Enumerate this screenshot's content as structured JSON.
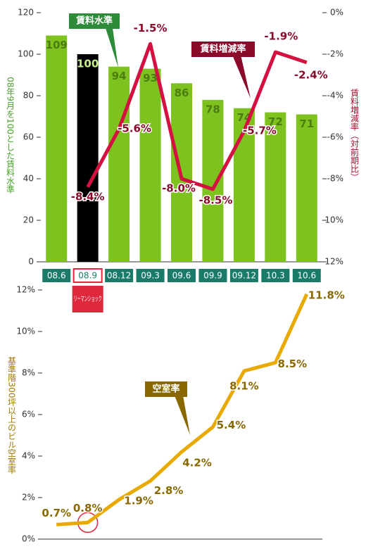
{
  "chart_data": [
    {
      "type": "bar",
      "categories": [
        "08.6",
        "08.9",
        "08.12",
        "09.3",
        "09.6",
        "09.9",
        "09.12",
        "10.3",
        "10.6"
      ],
      "series": [
        {
          "name": "賃料水準",
          "type": "bar",
          "colors": [
            "#7dc21e",
            "#000000",
            "#7dc21e",
            "#7dc21e",
            "#7dc21e",
            "#7dc21e",
            "#7dc21e",
            "#7dc21e",
            "#7dc21e"
          ],
          "values": [
            109,
            100,
            94,
            93,
            86,
            78,
            74,
            72,
            71
          ]
        },
        {
          "name": "賃料増減率",
          "type": "line",
          "axis": "y2",
          "color": "#d3103f",
          "values": [
            null,
            -8.4,
            -5.6,
            -1.5,
            -8,
            -8.5,
            -5.7,
            -1.9,
            -2.4
          ],
          "value_labels": [
            null,
            "-8.4%",
            "-5.6%",
            "-1.5%",
            "-8.0%",
            "-8.5%",
            "-5.7%",
            "-1.9%",
            "-2.4%"
          ]
        }
      ],
      "ylim": [
        0,
        120
      ],
      "yticks": [
        0,
        20,
        40,
        60,
        80,
        100,
        120
      ],
      "y2lim": [
        -12,
        0
      ],
      "y2ticks": [
        {
          "value": 0,
          "label": "0%"
        },
        {
          "value": -2,
          "label": "-2%"
        },
        {
          "value": -4,
          "label": "-4%"
        },
        {
          "value": -6,
          "label": "-6%"
        },
        {
          "value": -8,
          "label": "-8%"
        },
        {
          "value": -10,
          "label": "-10%"
        },
        {
          "value": -12,
          "label": "-12%"
        }
      ],
      "ylabel": "08年9月を100とした賃料水準",
      "y2label": "賃料増減率（対前期比）",
      "annotation": "リーマンショック"
    },
    {
      "type": "line",
      "series": [
        {
          "name": "空室率",
          "color": "#e8a900",
          "values": [
            0.7,
            0.8,
            1.9,
            2.8,
            4.2,
            5.4,
            8.1,
            8.5,
            11.8
          ],
          "value_labels": [
            "0.7%",
            "0.8%",
            "1.9%",
            "2.8%",
            "4.2%",
            "5.4%",
            "8.1%",
            "8.5%",
            "11.8%"
          ]
        }
      ],
      "ylim": [
        0,
        12
      ],
      "yticks": [
        {
          "value": 0,
          "label": "0%"
        },
        {
          "value": 2,
          "label": "2%"
        },
        {
          "value": 4,
          "label": "4%"
        },
        {
          "value": 6,
          "label": "6%"
        },
        {
          "value": 8,
          "label": "8%"
        },
        {
          "value": 10,
          "label": "10%"
        },
        {
          "value": 12,
          "label": "12%"
        }
      ],
      "ylabel": "基準階300坪以上のビル空室率"
    }
  ]
}
